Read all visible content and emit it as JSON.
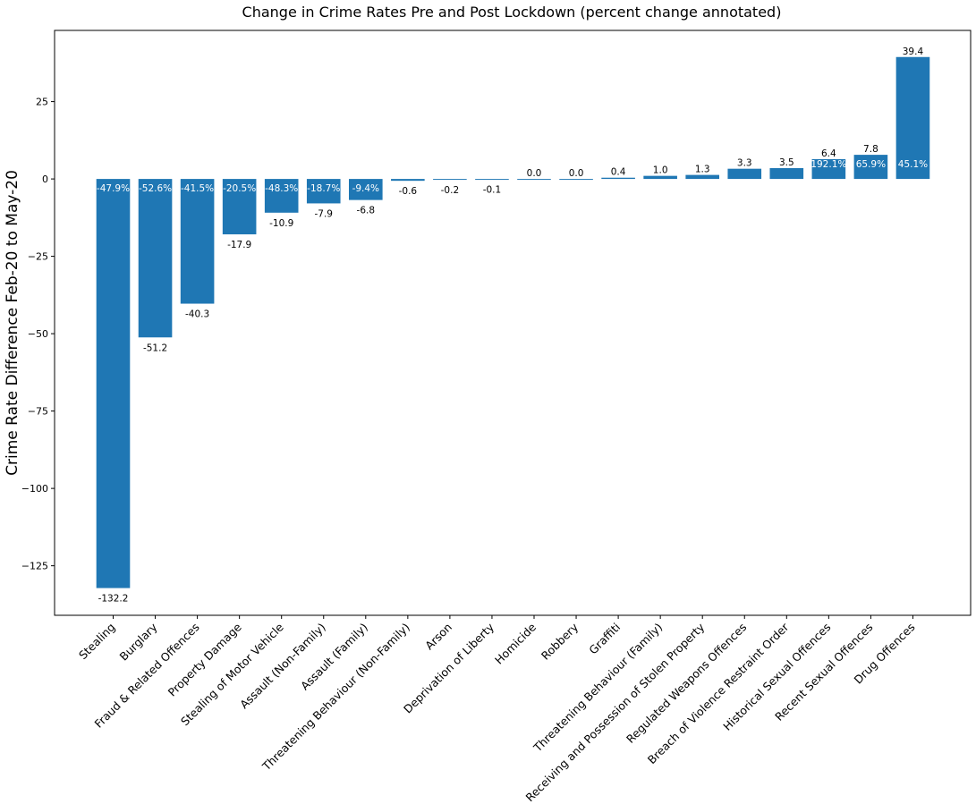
{
  "chart_data": {
    "type": "bar",
    "title": "Change in Crime Rates Pre and Post Lockdown (percent change annotated)",
    "xlabel": "",
    "ylabel": "Crime Rate Difference Feb-20 to May-20",
    "ylim": [
      -141,
      48
    ],
    "yticks": [
      25,
      0,
      -25,
      -50,
      -75,
      -100,
      -125
    ],
    "ytick_labels": [
      "25",
      "0",
      "−25",
      "−50",
      "−75",
      "−100",
      "−125"
    ],
    "grid": false,
    "bar_color": "#1f77b4",
    "categories": [
      "Stealing",
      "Burglary",
      "Fraud & Related Offences",
      "Property Damage",
      "Stealing of Motor Vehicle",
      "Assault (Non-Family)",
      "Assault (Family)",
      "Threatening Behaviour (Non-Family)",
      "Arson",
      "Deprivation of Liberty",
      "Homicide",
      "Robbery",
      "Graffiti",
      "Threatening Behaviour (Family)",
      "Receiving and Possession of Stolen Property",
      "Regulated Weapons Offences",
      "Breach of Violence Restraint Order",
      "Historical Sexual Offences",
      "Recent Sexual Offences",
      "Drug Offences"
    ],
    "values": [
      -132.2,
      -51.2,
      -40.3,
      -17.9,
      -10.9,
      -7.9,
      -6.8,
      -0.6,
      -0.2,
      -0.1,
      0.0,
      0.0,
      0.4,
      1.0,
      1.3,
      3.3,
      3.5,
      6.4,
      7.8,
      39.4
    ],
    "value_labels": [
      "-132.2",
      "-51.2",
      "-40.3",
      "-17.9",
      "-10.9",
      "-7.9",
      "-6.8",
      "-0.6",
      "-0.2",
      "-0.1",
      "0.0",
      "0.0",
      "0.4",
      "1.0",
      "1.3",
      "3.3",
      "3.5",
      "6.4",
      "7.8",
      "39.4"
    ],
    "percent_labels": [
      "-47.9%",
      "-52.6%",
      "-41.5%",
      "-20.5%",
      "-48.3%",
      "-18.7%",
      "-9.4%",
      "",
      "",
      "",
      "",
      "",
      "",
      "",
      "",
      "",
      "",
      "192.1%",
      "65.9%",
      "45.1%"
    ]
  }
}
